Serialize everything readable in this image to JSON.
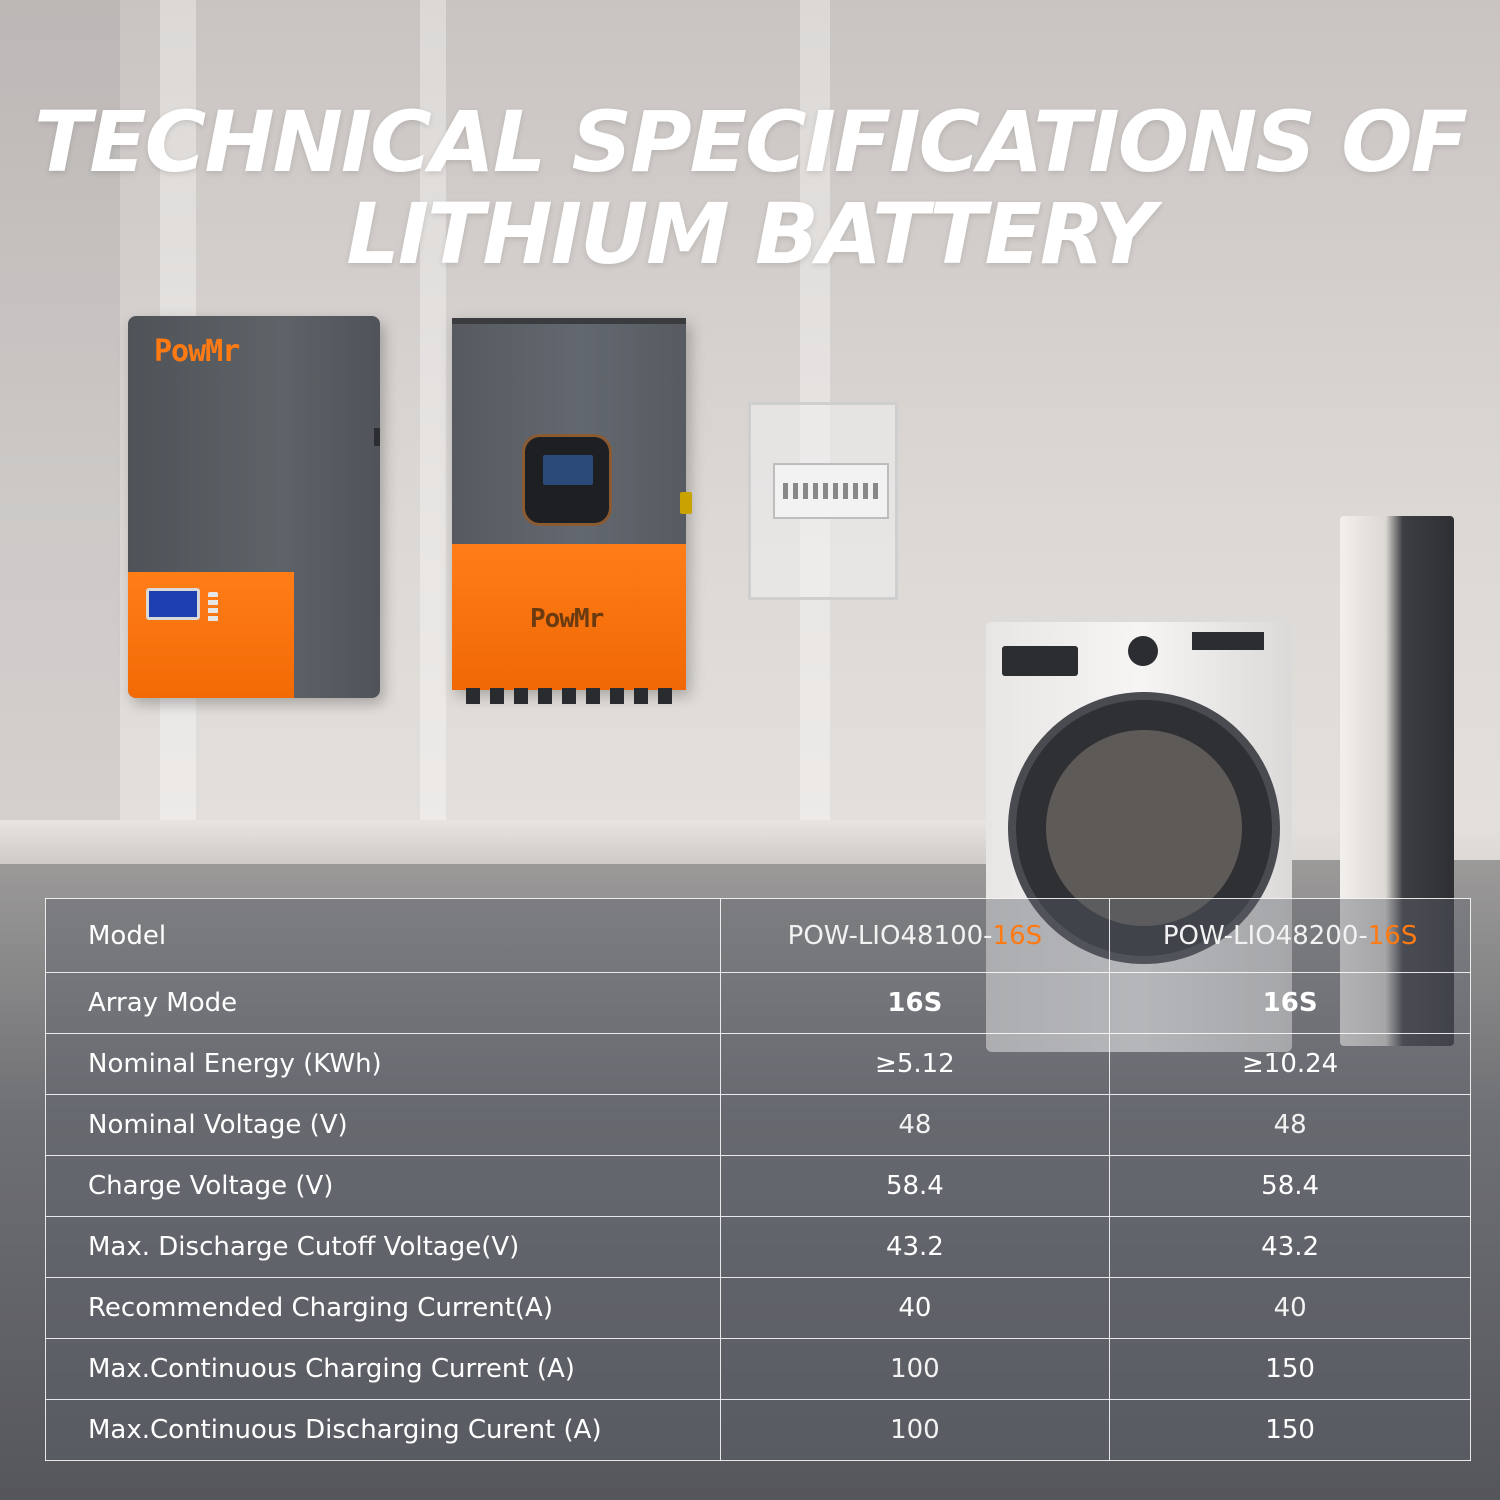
{
  "title": {
    "line1": "TECHNICAL SPECIFICATIONS OF",
    "line2": "LITHIUM BATTERY"
  },
  "brand": {
    "logo_text": "PowMr",
    "accent_color": "#ff7a12"
  },
  "table": {
    "header": {
      "label": "Model",
      "model1_prefix": "POW-LIO48100-",
      "model1_suffix": "16S",
      "model2_prefix": "POW-LIO48200-",
      "model2_suffix": "16S"
    },
    "rows": [
      {
        "label": "Array Mode",
        "v1": "16S",
        "v2": "16S"
      },
      {
        "label": "Nominal Energy (KWh)",
        "v1": "≥5.12",
        "v2": "≥10.24"
      },
      {
        "label": "Nominal Voltage (V)",
        "v1": "48",
        "v2": "48"
      },
      {
        "label": "Charge Voltage (V)",
        "v1": "58.4",
        "v2": "58.4"
      },
      {
        "label": "Max. Discharge Cutoff Voltage(V)",
        "v1": "43.2",
        "v2": "43.2"
      },
      {
        "label": "Recommended Charging Current(A)",
        "v1": "40",
        "v2": "40"
      },
      {
        "label": "Max.Continuous Charging Current (A)",
        "v1": "100",
        "v2": "150"
      },
      {
        "label": "Max.Continuous Discharging Curent (A)",
        "v1": "100",
        "v2": "150"
      }
    ]
  }
}
